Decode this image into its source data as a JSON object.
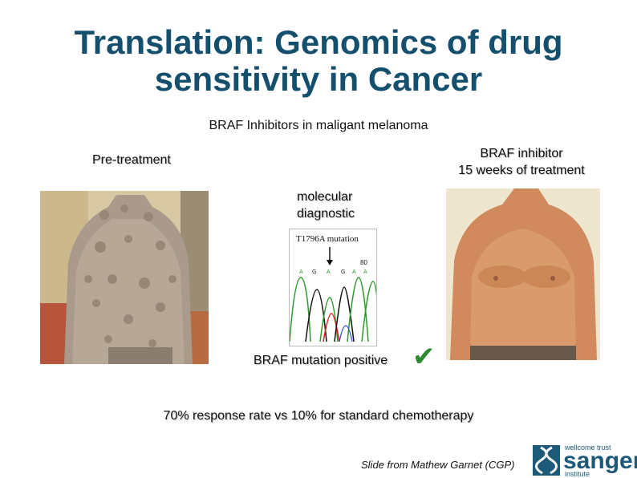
{
  "slide": {
    "title_line1": "Translation: Genomics of drug",
    "title_line2": "sensitivity in Cancer",
    "subtitle": "BRAF Inhibitors in maligant melanoma",
    "pre_label": "Pre-treatment",
    "post_label_line1": "BRAF inhibitor",
    "post_label_line2": "15 weeks of treatment",
    "diag_label_line1": "molecular",
    "diag_label_line2": "diagnostic",
    "mutation_label": "BRAF mutation positive",
    "check_glyph": "✔",
    "response_text": "70% response rate vs 10% for standard chemotherapy",
    "credit": "Slide from Mathew Garnet (CGP)"
  },
  "chromatogram": {
    "header": "T1796A mutation",
    "number": "80",
    "bases": [
      "A",
      "G",
      "A",
      "G",
      "A",
      "A"
    ]
  },
  "logo": {
    "top": "wellcome trust",
    "main": "sanger",
    "bottom": "institute"
  },
  "colors": {
    "title": "#14506e",
    "check": "#2f8a2f",
    "logo": "#1d5a7a"
  }
}
